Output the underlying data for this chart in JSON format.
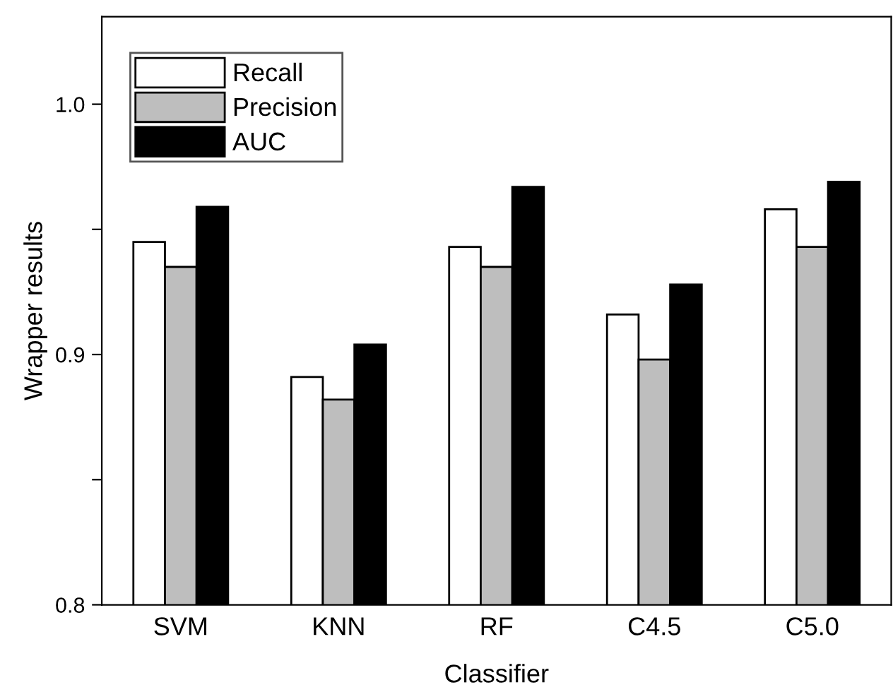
{
  "chart_data": {
    "type": "bar",
    "xlabel": "Classifier",
    "ylabel": "Wrapper results",
    "categories": [
      "SVM",
      "KNN",
      "RF",
      "C4.5",
      "C5.0"
    ],
    "series": [
      {
        "name": "Recall",
        "color": "#ffffff",
        "values": [
          0.945,
          0.891,
          0.943,
          0.916,
          0.958
        ]
      },
      {
        "name": "Precision",
        "color": "#bebebe",
        "values": [
          0.935,
          0.882,
          0.935,
          0.898,
          0.943
        ]
      },
      {
        "name": "AUC",
        "color": "#000000",
        "values": [
          0.959,
          0.904,
          0.967,
          0.928,
          0.969
        ]
      }
    ],
    "ylim": [
      0.8,
      1.035
    ],
    "yticks": [
      0.8,
      {
        "value": 0.85,
        "label": null
      },
      0.9,
      {
        "value": 0.95,
        "label": null
      },
      {
        "value": 1.0,
        "label": "1.0"
      }
    ],
    "grid": false,
    "legend": "top left"
  }
}
